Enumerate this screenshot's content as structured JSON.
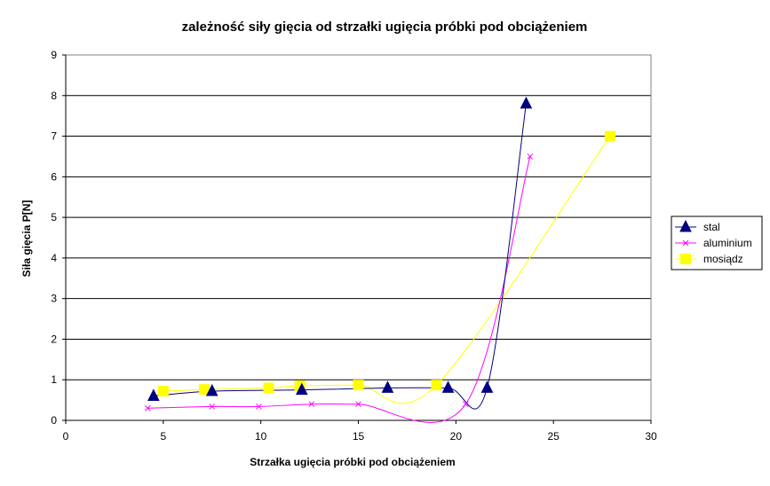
{
  "chart_data": {
    "type": "scatter",
    "title": "zależność siły gięcia od strzałki ugięcia próbki pod obciążeniem",
    "xlabel": "Strzałka ugięcia próbki pod obciążeniem",
    "ylabel": "Siła gięcia P[N]",
    "xlim": [
      0,
      30
    ],
    "ylim": [
      0,
      9
    ],
    "xticks": [
      0,
      5,
      10,
      15,
      20,
      25,
      30
    ],
    "yticks": [
      0,
      1,
      2,
      3,
      4,
      5,
      6,
      7,
      8,
      9
    ],
    "grid": "horizontal",
    "legend_position": "right",
    "smoothed_lines": true,
    "series": [
      {
        "name": "stal",
        "color": "#000080",
        "marker": "triangle",
        "x": [
          4.5,
          7.5,
          12.1,
          16.5,
          19.6,
          21.6,
          23.6
        ],
        "y": [
          0.6,
          0.72,
          0.75,
          0.8,
          0.8,
          0.8,
          7.8
        ]
      },
      {
        "name": "aluminium",
        "color": "#FF00FF",
        "marker": "x",
        "x": [
          4.2,
          7.5,
          9.9,
          12.6,
          15.0,
          20.5,
          23.8
        ],
        "y": [
          0.3,
          0.34,
          0.34,
          0.4,
          0.4,
          0.4,
          6.5
        ]
      },
      {
        "name": "mosiądz",
        "color": "#FFFF00",
        "marker": "square",
        "x": [
          5.0,
          7.1,
          10.4,
          12.0,
          15.0,
          19.0,
          27.9
        ],
        "y": [
          0.72,
          0.76,
          0.8,
          0.85,
          0.87,
          0.87,
          7.0
        ]
      }
    ]
  }
}
